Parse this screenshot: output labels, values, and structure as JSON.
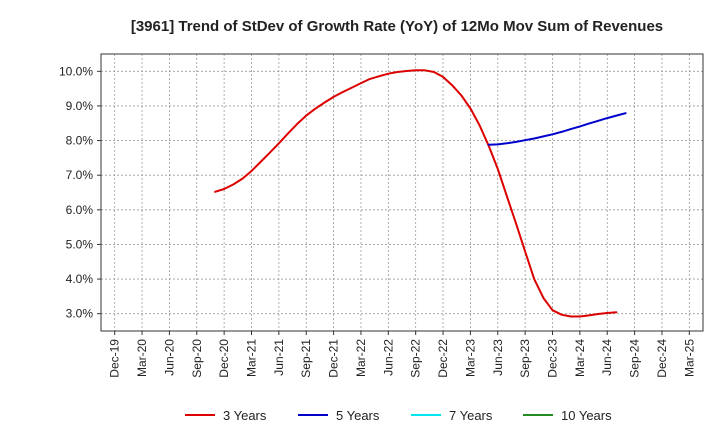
{
  "chart_data": {
    "type": "line",
    "title": "[3961]  Trend of StDev of Growth Rate (YoY) of 12Mo Mov Sum of Revenues",
    "xlabel": "",
    "ylabel": "",
    "ylim": [
      2.5,
      10.5
    ],
    "y_ticks": [
      3.0,
      4.0,
      5.0,
      6.0,
      7.0,
      8.0,
      9.0,
      10.0
    ],
    "y_tick_labels": [
      "3.0%",
      "4.0%",
      "5.0%",
      "6.0%",
      "7.0%",
      "8.0%",
      "9.0%",
      "10.0%"
    ],
    "x_tick_labels": [
      "Dec-19",
      "Mar-20",
      "Jun-20",
      "Sep-20",
      "Dec-20",
      "Mar-21",
      "Jun-21",
      "Sep-21",
      "Dec-21",
      "Mar-22",
      "Jun-22",
      "Sep-22",
      "Dec-22",
      "Mar-23",
      "Jun-23",
      "Sep-23",
      "Dec-23",
      "Mar-24",
      "Jun-24",
      "Sep-24",
      "Dec-24",
      "Mar-25"
    ],
    "grid": true,
    "legend_position": "bottom",
    "series": [
      {
        "name": "3 Years",
        "color": "#dd0000",
        "points": [
          [
            21.67,
            6.52
          ],
          [
            22.0,
            6.6
          ],
          [
            22.33,
            6.73
          ],
          [
            22.67,
            6.9
          ],
          [
            23.0,
            7.12
          ],
          [
            23.33,
            7.38
          ],
          [
            23.67,
            7.65
          ],
          [
            24.0,
            7.92
          ],
          [
            24.33,
            8.2
          ],
          [
            24.67,
            8.48
          ],
          [
            25.0,
            8.72
          ],
          [
            25.33,
            8.92
          ],
          [
            25.67,
            9.1
          ],
          [
            26.0,
            9.26
          ],
          [
            26.33,
            9.4
          ],
          [
            26.67,
            9.53
          ],
          [
            27.0,
            9.66
          ],
          [
            27.33,
            9.78
          ],
          [
            27.67,
            9.86
          ],
          [
            28.0,
            9.93
          ],
          [
            28.33,
            9.98
          ],
          [
            28.67,
            10.01
          ],
          [
            29.0,
            10.03
          ],
          [
            29.33,
            10.03
          ],
          [
            29.67,
            9.98
          ],
          [
            30.0,
            9.84
          ],
          [
            30.33,
            9.6
          ],
          [
            30.67,
            9.3
          ],
          [
            31.0,
            8.93
          ],
          [
            31.33,
            8.45
          ],
          [
            31.67,
            7.85
          ],
          [
            32.0,
            7.18
          ],
          [
            32.33,
            6.4
          ],
          [
            32.67,
            5.6
          ],
          [
            33.0,
            4.8
          ],
          [
            33.33,
            4.0
          ],
          [
            33.67,
            3.45
          ],
          [
            34.0,
            3.1
          ],
          [
            34.33,
            2.97
          ],
          [
            34.67,
            2.92
          ],
          [
            35.0,
            2.92
          ],
          [
            35.33,
            2.95
          ],
          [
            35.67,
            2.99
          ],
          [
            36.0,
            3.02
          ],
          [
            36.33,
            3.04
          ]
        ]
      },
      {
        "name": "5 Years",
        "color": "#0000cc",
        "points": [
          [
            31.67,
            7.88
          ],
          [
            32.0,
            7.89
          ],
          [
            32.33,
            7.92
          ],
          [
            32.67,
            7.96
          ],
          [
            33.0,
            8.01
          ],
          [
            33.33,
            8.06
          ],
          [
            33.67,
            8.12
          ],
          [
            34.0,
            8.18
          ],
          [
            34.33,
            8.25
          ],
          [
            34.67,
            8.33
          ],
          [
            35.0,
            8.41
          ],
          [
            35.33,
            8.49
          ],
          [
            35.67,
            8.57
          ],
          [
            36.0,
            8.65
          ],
          [
            36.33,
            8.72
          ],
          [
            36.67,
            8.79
          ]
        ]
      },
      {
        "name": "7 Years",
        "color": "#00e5ee",
        "points": []
      },
      {
        "name": "10 Years",
        "color": "#228b22",
        "points": []
      }
    ]
  }
}
